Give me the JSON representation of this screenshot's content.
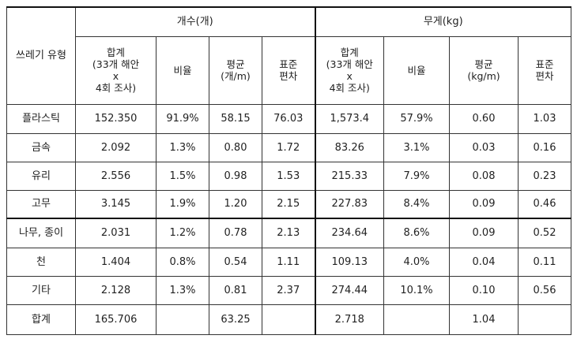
{
  "table": {
    "header": {
      "row_label": "쓰레기 유형",
      "groups": [
        "개수(개)",
        "무게(kg)"
      ],
      "columns": [
        "합계\n(33개 해안\nx\n4회 조사)",
        "비율",
        "평균\n(개/m)",
        "표준\n편차",
        "합계\n(33개 해안\nx\n4회 조사)",
        "비율",
        "평균\n(kg/m)",
        "표준\n편차"
      ]
    },
    "rows": [
      [
        "플라스틱",
        "152.350",
        "91.9%",
        "58.15",
        "76.03",
        "1,573.4",
        "57.9%",
        "0.60",
        "1.03"
      ],
      [
        "금속",
        "2.092",
        "1.3%",
        "0.80",
        "1.72",
        "83.26",
        "3.1%",
        "0.03",
        "0.16"
      ],
      [
        "유리",
        "2.556",
        "1.5%",
        "0.98",
        "1.53",
        "215.33",
        "7.9%",
        "0.08",
        "0.23"
      ],
      [
        "고무",
        "3.145",
        "1.9%",
        "1.20",
        "2.15",
        "227.83",
        "8.4%",
        "0.09",
        "0.46"
      ],
      [
        "나무, 종이",
        "2.031",
        "1.2%",
        "0.78",
        "2.13",
        "234.64",
        "8.6%",
        "0.09",
        "0.52"
      ],
      [
        "천",
        "1.404",
        "0.8%",
        "0.54",
        "1.11",
        "109.13",
        "4.0%",
        "0.04",
        "0.11"
      ],
      [
        "기타",
        "2.128",
        "1.3%",
        "0.81",
        "2.37",
        "274.44",
        "10.1%",
        "0.10",
        "0.56"
      ],
      [
        "합계",
        "165.706",
        null,
        "63.25",
        null,
        "2.718",
        null,
        "1.04",
        null
      ]
    ]
  }
}
